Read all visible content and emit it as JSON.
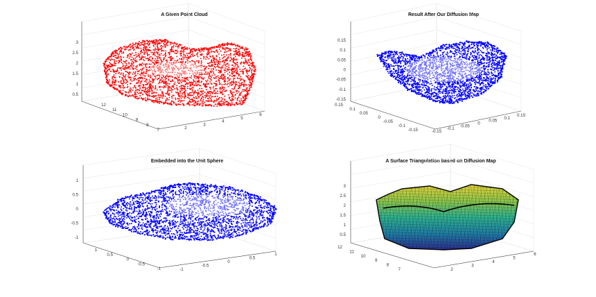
{
  "chart_data": [
    {
      "type": "scatter",
      "title": "A Given Point Cloud",
      "marker_color": "#ff0000",
      "z_ticks": [
        "3",
        "2.5",
        "2",
        "1.5",
        "1",
        "0.5"
      ],
      "left_ticks": [
        "12",
        "11",
        "10",
        "9",
        "8",
        "7"
      ],
      "right_ticks": [
        "2",
        "3",
        "4",
        "5",
        "6"
      ],
      "zlim": [
        0.3,
        3.2
      ],
      "ylim": [
        7,
        12
      ],
      "xlim": [
        1.5,
        6.3
      ]
    },
    {
      "type": "scatter",
      "title": "Result After Our Diffusion Map",
      "marker_color": "#0000ff",
      "z_ticks": [
        "0.15",
        "0.1",
        "0.05",
        "0",
        "-0.05",
        "-0.1",
        "-0.15"
      ],
      "left_ticks": [
        "0.15",
        "0.1",
        "0.05",
        "0",
        "-0.05",
        "-0.1",
        "-0.15"
      ],
      "right_ticks": [
        "-0.15",
        "-0.1",
        "-0.05",
        "0",
        "0.05",
        "0.1",
        "0.15"
      ],
      "zlim": [
        -0.15,
        0.15
      ],
      "ylim": [
        -0.15,
        0.15
      ],
      "xlim": [
        -0.15,
        0.15
      ]
    },
    {
      "type": "scatter",
      "title": "Embedded into the Unit Sphere",
      "marker_color": "#0000ff",
      "z_ticks": [
        "1",
        "0.5",
        "0",
        "-0.5",
        "-1"
      ],
      "left_ticks": [
        "1",
        "0.5",
        "0",
        "-0.5",
        "-1"
      ],
      "right_ticks": [
        "-1",
        "-0.5",
        "0",
        "0.5",
        "1"
      ],
      "zlim": [
        -1,
        1
      ],
      "ylim": [
        -1,
        1
      ],
      "xlim": [
        -1,
        1
      ]
    },
    {
      "type": "surface",
      "title": "A Surface Triangulation based on Diffusion Map",
      "colormap": [
        "#2c2c8f",
        "#1f7fa6",
        "#2fb38f",
        "#8fc84a",
        "#e6d43a"
      ],
      "z_ticks": [
        "3",
        "2.5",
        "2",
        "1.5",
        "1",
        "0.5"
      ],
      "left_ticks": [
        "12",
        "11",
        "10",
        "9",
        "8",
        "7"
      ],
      "right_ticks": [
        "2",
        "3",
        "4",
        "5",
        "6"
      ],
      "zlim": [
        0.3,
        3.2
      ],
      "ylim": [
        7,
        12
      ],
      "xlim": [
        1.5,
        6.3
      ]
    }
  ]
}
